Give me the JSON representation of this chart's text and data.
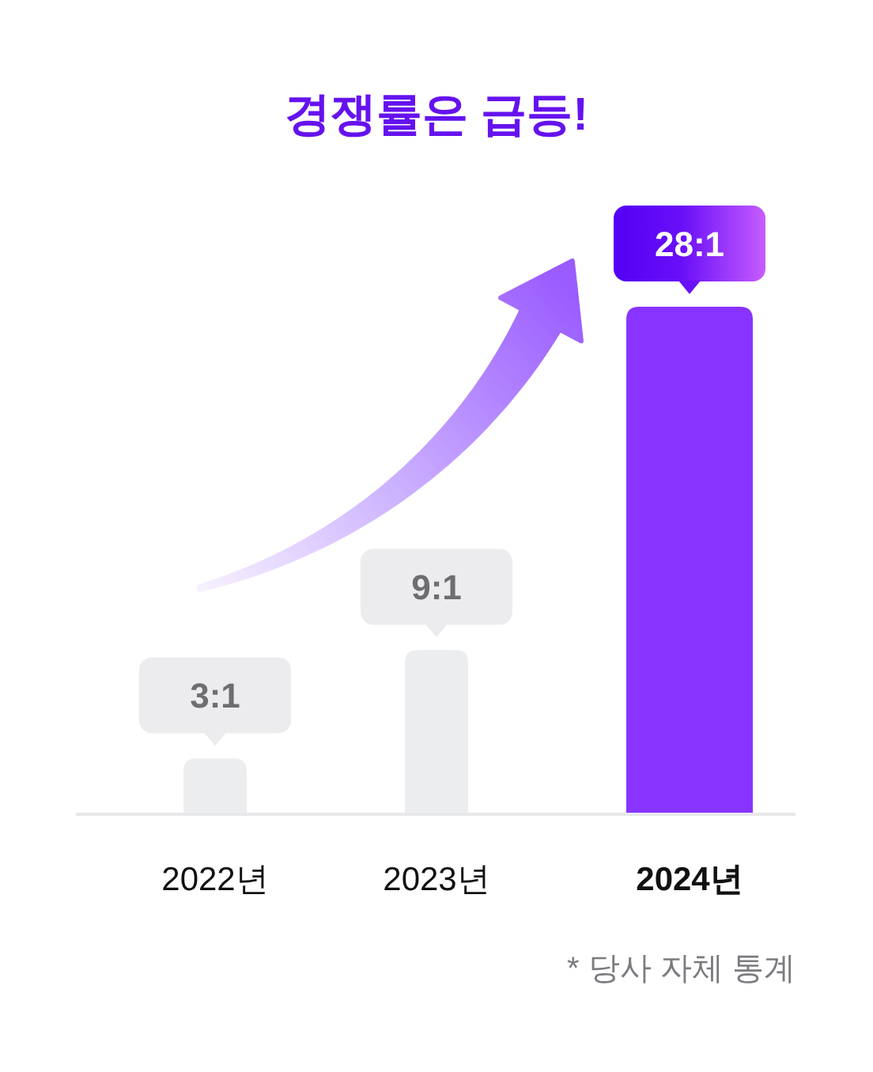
{
  "chart_data": {
    "type": "bar",
    "title": "경쟁률은 급등!",
    "categories": [
      "2022년",
      "2023년",
      "2024년"
    ],
    "values": [
      3,
      9,
      28
    ],
    "colors": [
      "#ecedef",
      "#ecedef",
      "#8833ff"
    ],
    "value_labels": [
      "3:1",
      "9:1",
      "28:1"
    ],
    "annotations": [
      "* 당사 자체 통계"
    ]
  }
}
